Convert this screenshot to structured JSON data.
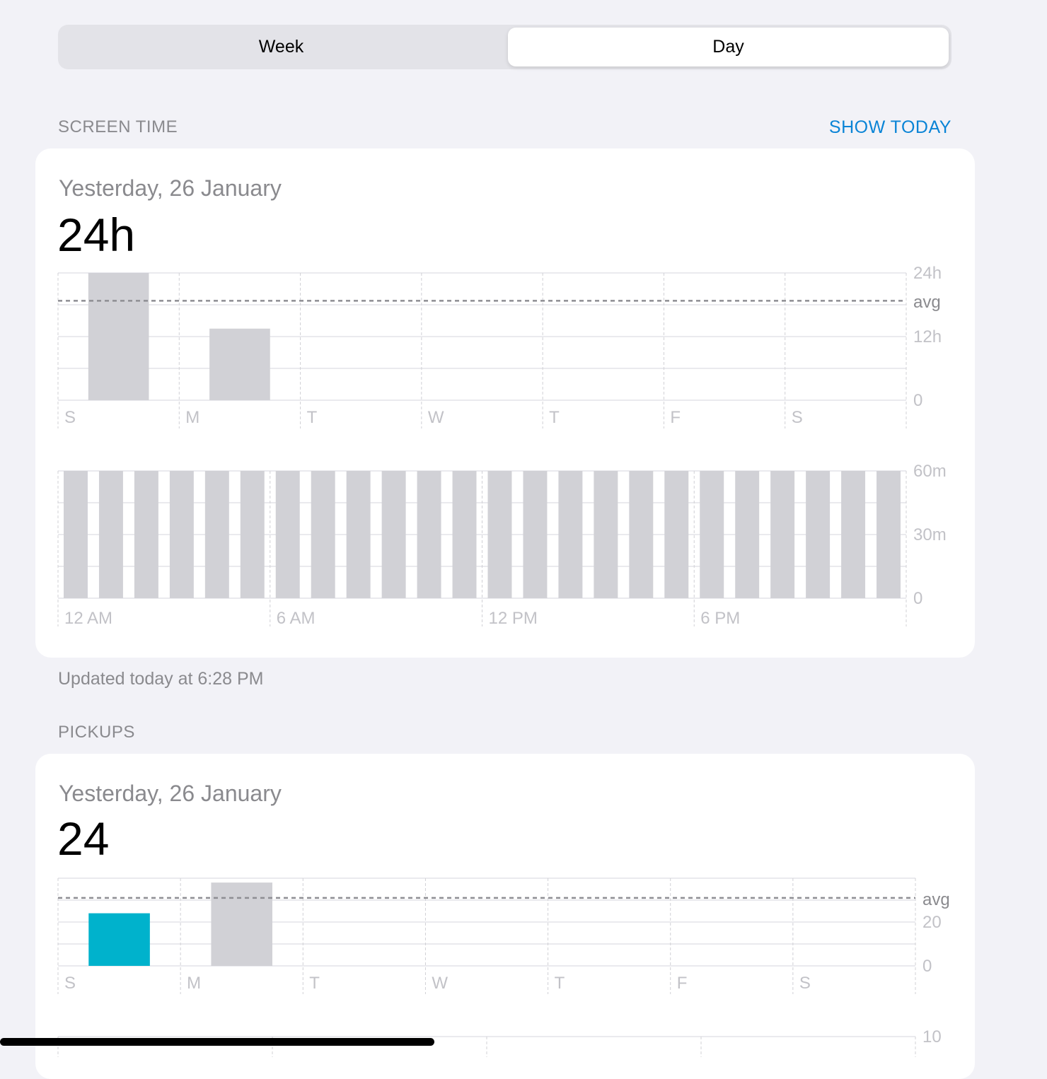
{
  "segmented": {
    "week_label": "Week",
    "day_label": "Day",
    "selected": "Day"
  },
  "screen_time": {
    "section_label": "SCREEN TIME",
    "action_label": "SHOW TODAY",
    "date": "Yesterday, 26 January",
    "total": "24h",
    "updated": "Updated today at 6:28 PM"
  },
  "pickups": {
    "section_label": "PICKUPS",
    "date": "Yesterday, 26 January",
    "total": "24"
  },
  "colors": {
    "bar": "#d1d1d6",
    "highlight": "#00b2cc",
    "link": "#0a84d6"
  },
  "chart_data": [
    {
      "id": "screen-time-week",
      "type": "bar",
      "categories": [
        "S",
        "M",
        "T",
        "W",
        "T",
        "F",
        "S"
      ],
      "values": [
        24,
        13.5,
        0,
        0,
        0,
        0,
        0
      ],
      "ylim": [
        0,
        24
      ],
      "ytick_labels": [
        "24h",
        "12h",
        "0"
      ],
      "avg_label": "avg",
      "avg_value": 18.75,
      "grid": true
    },
    {
      "id": "screen-time-day",
      "type": "bar",
      "values": [
        60,
        60,
        60,
        60,
        60,
        60,
        60,
        60,
        60,
        60,
        60,
        60,
        60,
        60,
        60,
        60,
        60,
        60,
        60,
        60,
        60,
        60,
        60,
        60
      ],
      "xtick_labels": [
        "12 AM",
        "6 AM",
        "12 PM",
        "6 PM"
      ],
      "ylim": [
        0,
        60
      ],
      "ytick_labels": [
        "60m",
        "30m",
        "0"
      ],
      "grid": true
    },
    {
      "id": "pickups-week",
      "type": "bar",
      "categories": [
        "S",
        "M",
        "T",
        "W",
        "T",
        "F",
        "S"
      ],
      "values": [
        24,
        38,
        0,
        0,
        0,
        0,
        0
      ],
      "ylim": [
        0,
        40
      ],
      "ytick_labels": [
        "20",
        "0"
      ],
      "avg_label": "avg",
      "avg_value": 31,
      "highlight_index": 0,
      "grid": true
    },
    {
      "id": "pickups-day",
      "type": "bar",
      "ytick_labels": [
        "10"
      ]
    }
  ]
}
